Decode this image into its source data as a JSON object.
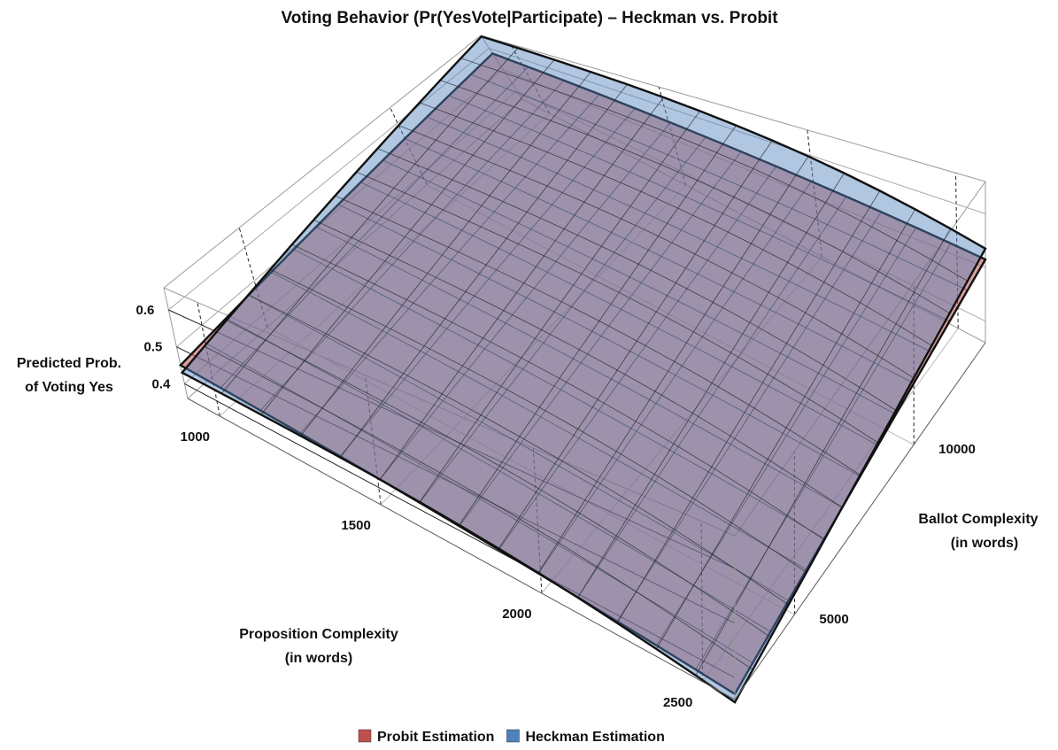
{
  "chart_data": {
    "type": "surface3d",
    "title": "Voting Behavior (Pr(YesVote|Participate) – Heckman vs. Probit",
    "xlabel": [
      "Proposition Complexity",
      "(in words)"
    ],
    "ylabel": [
      "Ballot Complexity",
      "(in words)"
    ],
    "zlabel": [
      "Predicted Prob.",
      "of Voting Yes"
    ],
    "x_ticks": [
      1000,
      1500,
      2000,
      2500
    ],
    "y_ticks": [
      5000,
      10000
    ],
    "z_ticks": [
      0.4,
      0.5,
      0.6
    ],
    "x_tick_labels": [
      "1000",
      "1500",
      "2000",
      "2500"
    ],
    "y_tick_labels": [
      "5000",
      "10000"
    ],
    "z_tick_labels": [
      "0.4",
      "0.5",
      "0.6"
    ],
    "xlim": [
      900,
      2600
    ],
    "ylim": [
      2500,
      13000
    ],
    "zlim": [
      0.36,
      0.66
    ],
    "series": [
      {
        "name": "Probit Estimation",
        "color": "#c0504d",
        "corners": {
          "x_min_y_min": 0.45,
          "x_min_y_max": 0.575,
          "x_max_y_min": 0.37,
          "x_max_y_max": 0.515
        }
      },
      {
        "name": "Heckman Estimation",
        "color": "#4f81bd",
        "corners": {
          "x_min_y_min": 0.43,
          "x_min_y_max": 0.655,
          "x_max_y_min": 0.355,
          "x_max_y_max": 0.535
        }
      }
    ],
    "legend_position": "bottom"
  }
}
